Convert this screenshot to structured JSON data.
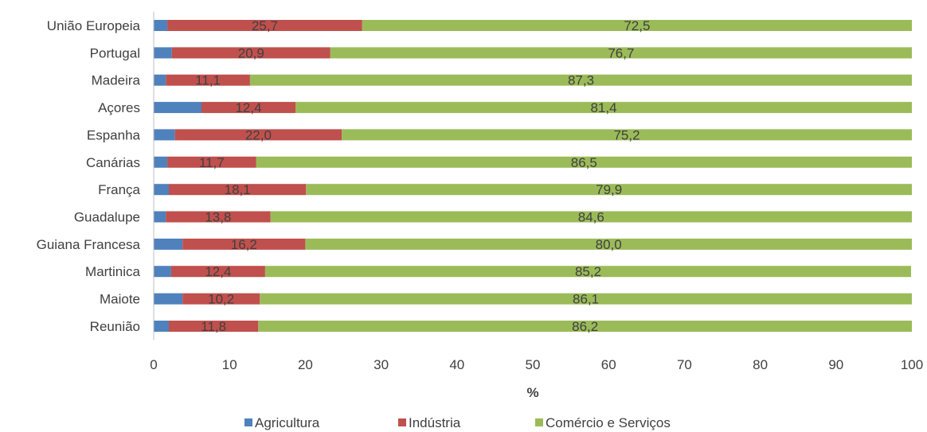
{
  "chart_data": {
    "type": "bar",
    "orientation": "horizontal",
    "stacked": true,
    "categories": [
      "União Europeia",
      "Portugal",
      "Madeira",
      "Açores",
      "Espanha",
      "Canárias",
      "França",
      "Guadalupe",
      "Guiana Francesa",
      "Martinica",
      "Maiote",
      "Reunião"
    ],
    "series": [
      {
        "name": "Agricultura",
        "color": "#4f81bd",
        "values": [
          1.8,
          2.4,
          1.6,
          6.3,
          2.8,
          1.8,
          2.0,
          1.6,
          3.8,
          2.3,
          3.8,
          2.0
        ],
        "labels": [
          "",
          "",
          "",
          "",
          "",
          "",
          "",
          "",
          "",
          "",
          "",
          ""
        ]
      },
      {
        "name": "Indústria",
        "color": "#c0504d",
        "values": [
          25.7,
          20.9,
          11.1,
          12.4,
          22.0,
          11.7,
          18.1,
          13.8,
          16.2,
          12.4,
          10.2,
          11.8
        ],
        "labels": [
          "25,7",
          "20,9",
          "11,1",
          "12,4",
          "22,0",
          "11,7",
          "18,1",
          "13,8",
          "16,2",
          "12,4",
          "10,2",
          "11,8"
        ]
      },
      {
        "name": "Comércio e Serviços",
        "color": "#9bbb59",
        "values": [
          72.5,
          76.7,
          87.3,
          81.4,
          75.2,
          86.5,
          79.9,
          84.6,
          80.0,
          85.2,
          86.1,
          86.2
        ],
        "labels": [
          "72,5",
          "76,7",
          "87,3",
          "81,4",
          "75,2",
          "86,5",
          "79,9",
          "84,6",
          "80,0",
          "85,2",
          "86,1",
          "86,2"
        ]
      }
    ],
    "xlabel": "%",
    "ylabel": "",
    "xlim": [
      0,
      100
    ],
    "xticks": [
      "0",
      "10",
      "20",
      "30",
      "40",
      "50",
      "60",
      "70",
      "80",
      "90",
      "100"
    ],
    "grid": false,
    "legend_position": "bottom"
  }
}
